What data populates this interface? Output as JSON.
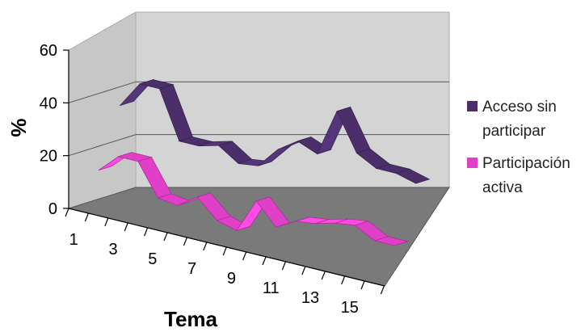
{
  "chart_data": {
    "type": "line",
    "title": "",
    "xlabel": "Tema",
    "ylabel": "%",
    "x": [
      1,
      2,
      3,
      4,
      5,
      6,
      7,
      8,
      9,
      10,
      11,
      12,
      13,
      14,
      15,
      16
    ],
    "x_tick_labels": [
      "1",
      "3",
      "5",
      "7",
      "9",
      "11",
      "13",
      "15"
    ],
    "y_ticks": [
      "0",
      "20",
      "40",
      "60"
    ],
    "ylim": [
      0,
      60
    ],
    "grid": true,
    "style": "3d-ribbon",
    "legend_position": "right",
    "series": [
      {
        "name": "Acceso sin participar",
        "color": "#4b2f6b",
        "values": [
          35,
          45,
          45,
          27,
          27,
          29,
          24,
          25,
          33,
          38,
          35,
          53,
          39,
          35,
          35,
          33
        ]
      },
      {
        "name": "Participación activa",
        "color": "#e040c8",
        "values": [
          13,
          20,
          20,
          8,
          7,
          12,
          5,
          3,
          16,
          8,
          12,
          13,
          15,
          16,
          12,
          12
        ]
      }
    ]
  }
}
